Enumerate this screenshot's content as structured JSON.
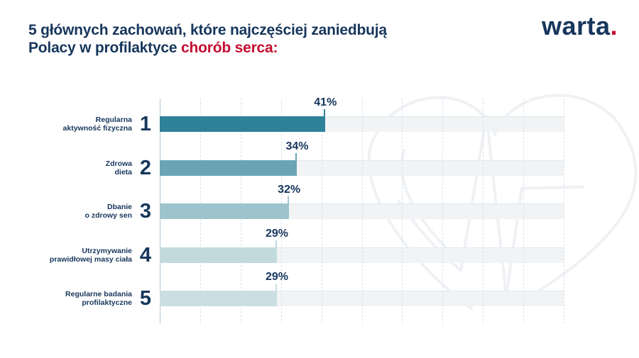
{
  "header": {
    "title_line1": "5 głównych zachowań, które najczęściej zaniedbują",
    "title_line2_prefix": "Polacy w profilaktyce ",
    "title_line2_highlight": "chorób serca:",
    "title_color": "#17365c",
    "highlight_color": "#c60c30"
  },
  "logo": {
    "text": "warta",
    "dot": ".",
    "color": "#17365c",
    "dot_color": "#c60c30"
  },
  "chart_data": {
    "type": "bar",
    "orientation": "horizontal",
    "title": "5 głównych zachowań, które najczęściej zaniedbują Polacy w profilaktyce chorób serca",
    "unit": "%",
    "xlim": [
      0,
      100
    ],
    "gridline_interval_pct": 10,
    "grid": "dashed-vertical",
    "legend": "none",
    "categories": [
      "Regularna aktywność fizyczna",
      "Zdrowa dieta",
      "Dbanie o zdrowy sen",
      "Utrzymywanie prawidłowej masy ciała",
      "Regularne badania profilaktyczne"
    ],
    "values": [
      41,
      34,
      32,
      29,
      29
    ],
    "rows": [
      {
        "rank": "1",
        "label_line1": "Regularna",
        "label_line2": "aktywność fizyczna",
        "value": 41,
        "value_label": "41%",
        "bar_color": "#2e8198"
      },
      {
        "rank": "2",
        "label_line1": "Zdrowa",
        "label_line2": "dieta",
        "value": 34,
        "value_label": "34%",
        "bar_color": "#6ba5b4"
      },
      {
        "rank": "3",
        "label_line1": "Dbanie",
        "label_line2": "o zdrowy sen",
        "value": 32,
        "value_label": "32%",
        "bar_color": "#9dc3cd"
      },
      {
        "rank": "4",
        "label_line1": "Utrzymywanie",
        "label_line2": "prawidłowej masy ciała",
        "value": 29,
        "value_label": "29%",
        "bar_color": "#c2dade"
      },
      {
        "rank": "5",
        "label_line1": "Regularne badania",
        "label_line2": "profilaktyczne",
        "value": 29,
        "value_label": "29%",
        "bar_color": "#c9dfe2"
      }
    ],
    "track_color": "#f2f3f5",
    "grid_color": "#d9e4ea",
    "axis_color": "#aec8d6",
    "value_label_color": "#17365c"
  },
  "watermark": {
    "name": "heart-ekg",
    "stroke_color": "#eff1f4"
  }
}
